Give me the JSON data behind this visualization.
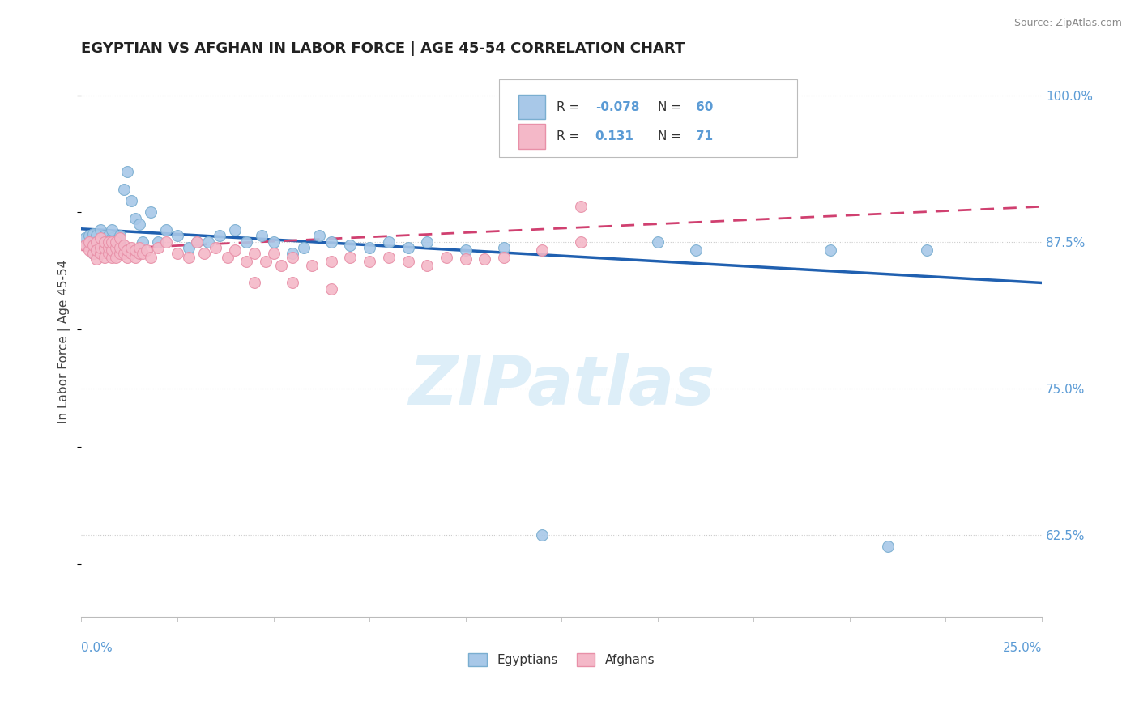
{
  "title": "EGYPTIAN VS AFGHAN IN LABOR FORCE | AGE 45-54 CORRELATION CHART",
  "source": "Source: ZipAtlas.com",
  "ylabel": "In Labor Force | Age 45-54",
  "xmin": 0.0,
  "xmax": 0.25,
  "ymin": 0.555,
  "ymax": 1.025,
  "yticks": [
    0.625,
    0.75,
    0.875,
    1.0
  ],
  "ytick_labels": [
    "62.5%",
    "75.0%",
    "87.5%",
    "100.0%"
  ],
  "blue_color": "#a8c8e8",
  "pink_color": "#f4b8c8",
  "blue_edge": "#7aaed0",
  "pink_edge": "#e890a8",
  "trend_blue": "#2060b0",
  "trend_pink": "#d04070",
  "dot_size": 100,
  "background_color": "#ffffff",
  "grid_color": "#cccccc",
  "watermark_color": "#ddeef8",
  "title_fontsize": 13,
  "tick_label_color": "#5b9bd5",
  "legend_text_color": "#5b9bd5",
  "blue_r": "-0.078",
  "blue_n": "60",
  "pink_r": "0.131",
  "pink_n": "71",
  "blue_dots_x": [
    0.001,
    0.002,
    0.002,
    0.003,
    0.003,
    0.003,
    0.004,
    0.004,
    0.004,
    0.005,
    0.005,
    0.005,
    0.006,
    0.006,
    0.006,
    0.007,
    0.007,
    0.007,
    0.008,
    0.008,
    0.008,
    0.009,
    0.009,
    0.01,
    0.01,
    0.011,
    0.012,
    0.013,
    0.014,
    0.015,
    0.016,
    0.018,
    0.02,
    0.022,
    0.025,
    0.028,
    0.03,
    0.033,
    0.036,
    0.04,
    0.043,
    0.047,
    0.05,
    0.055,
    0.058,
    0.062,
    0.065,
    0.07,
    0.075,
    0.08,
    0.085,
    0.09,
    0.1,
    0.11,
    0.12,
    0.15,
    0.16,
    0.195,
    0.21,
    0.22
  ],
  "blue_dots_y": [
    0.878,
    0.872,
    0.88,
    0.865,
    0.875,
    0.882,
    0.87,
    0.88,
    0.875,
    0.87,
    0.878,
    0.885,
    0.875,
    0.87,
    0.88,
    0.875,
    0.88,
    0.872,
    0.875,
    0.878,
    0.885,
    0.87,
    0.875,
    0.88,
    0.872,
    0.92,
    0.935,
    0.91,
    0.895,
    0.89,
    0.875,
    0.9,
    0.875,
    0.885,
    0.88,
    0.87,
    0.875,
    0.875,
    0.88,
    0.885,
    0.875,
    0.88,
    0.875,
    0.865,
    0.87,
    0.88,
    0.875,
    0.872,
    0.87,
    0.875,
    0.87,
    0.875,
    0.868,
    0.87,
    0.625,
    0.875,
    0.868,
    0.868,
    0.615,
    0.868
  ],
  "pink_dots_x": [
    0.001,
    0.002,
    0.002,
    0.003,
    0.003,
    0.004,
    0.004,
    0.004,
    0.005,
    0.005,
    0.005,
    0.006,
    0.006,
    0.006,
    0.007,
    0.007,
    0.007,
    0.008,
    0.008,
    0.008,
    0.009,
    0.009,
    0.009,
    0.01,
    0.01,
    0.01,
    0.011,
    0.011,
    0.012,
    0.012,
    0.013,
    0.013,
    0.014,
    0.014,
    0.015,
    0.015,
    0.016,
    0.017,
    0.018,
    0.02,
    0.022,
    0.025,
    0.028,
    0.03,
    0.032,
    0.035,
    0.038,
    0.04,
    0.043,
    0.045,
    0.048,
    0.05,
    0.052,
    0.055,
    0.06,
    0.065,
    0.07,
    0.075,
    0.08,
    0.085,
    0.09,
    0.095,
    0.1,
    0.105,
    0.11,
    0.12,
    0.13,
    0.045,
    0.055,
    0.065,
    0.13
  ],
  "pink_dots_y": [
    0.872,
    0.868,
    0.875,
    0.865,
    0.872,
    0.86,
    0.875,
    0.868,
    0.865,
    0.87,
    0.878,
    0.862,
    0.87,
    0.875,
    0.865,
    0.87,
    0.875,
    0.862,
    0.868,
    0.875,
    0.862,
    0.87,
    0.875,
    0.865,
    0.87,
    0.878,
    0.865,
    0.872,
    0.862,
    0.868,
    0.865,
    0.87,
    0.862,
    0.868,
    0.865,
    0.87,
    0.865,
    0.868,
    0.862,
    0.87,
    0.875,
    0.865,
    0.862,
    0.875,
    0.865,
    0.87,
    0.862,
    0.868,
    0.858,
    0.865,
    0.858,
    0.865,
    0.855,
    0.862,
    0.855,
    0.858,
    0.862,
    0.858,
    0.862,
    0.858,
    0.855,
    0.862,
    0.86,
    0.86,
    0.862,
    0.868,
    0.875,
    0.84,
    0.84,
    0.835,
    0.905
  ],
  "blue_trend_x": [
    0.0,
    0.25
  ],
  "blue_trend_y": [
    0.886,
    0.84
  ],
  "pink_trend_x": [
    0.0,
    0.25
  ],
  "pink_trend_y": [
    0.868,
    0.905
  ]
}
